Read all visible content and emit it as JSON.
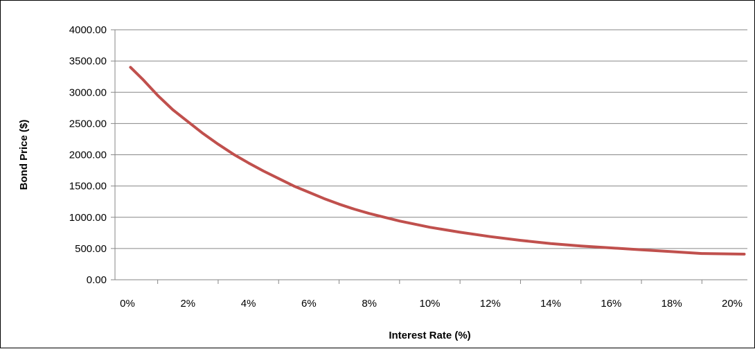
{
  "chart_data": {
    "type": "line",
    "title": "",
    "xlabel": "Interest Rate (%)",
    "ylabel": "Bond Price ($)",
    "x_tick_labels": [
      "0%",
      "2%",
      "4%",
      "6%",
      "8%",
      "10%",
      "12%",
      "14%",
      "16%",
      "18%",
      "20%"
    ],
    "y_tick_labels": [
      "0.00",
      "500.00",
      "1000.00",
      "1500.00",
      "2000.00",
      "2500.00",
      "3000.00",
      "3500.00",
      "4000.00"
    ],
    "ylim": [
      0,
      4000
    ],
    "xlim": [
      0,
      20
    ],
    "grid": "horizontal",
    "legend": "none",
    "line_color": "#c0504d",
    "gridline_color": "#868686",
    "series": [
      {
        "x": [
          0.1,
          0.5,
          1,
          1.5,
          2,
          2.5,
          3,
          3.5,
          4,
          4.5,
          5,
          5.5,
          6,
          6.5,
          7,
          7.5,
          8,
          9,
          10,
          11,
          12,
          13,
          14,
          15,
          16,
          17,
          18,
          19,
          20.4
        ],
        "values": [
          3400,
          3210,
          2950,
          2720,
          2530,
          2340,
          2170,
          2010,
          1870,
          1740,
          1620,
          1500,
          1400,
          1300,
          1210,
          1130,
          1060,
          940,
          840,
          760,
          690,
          630,
          580,
          540,
          510,
          480,
          450,
          420,
          410
        ]
      }
    ]
  }
}
